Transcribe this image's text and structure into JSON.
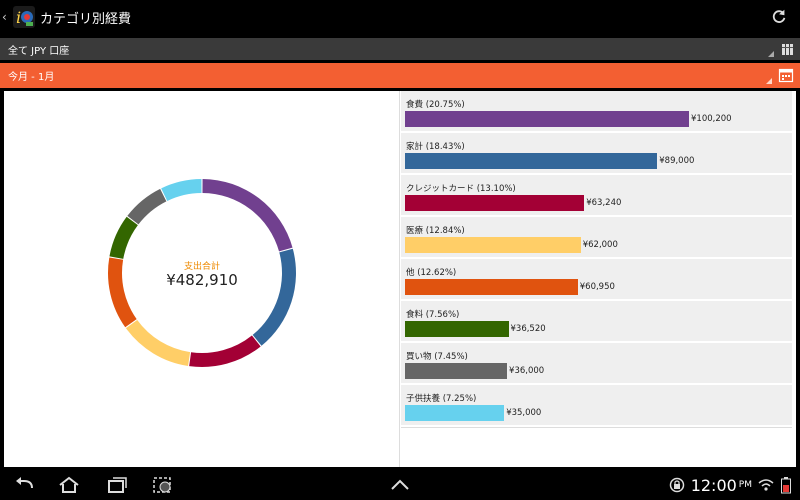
{
  "app": {
    "title": "カテゴリ別経費"
  },
  "account": {
    "label": "全て JPY 口座"
  },
  "period": {
    "label": "今月 - 1月"
  },
  "summary": {
    "title": "支出合計",
    "total": "¥482,910"
  },
  "categories": [
    {
      "label": "食費 (20.75%)",
      "amount": "¥100,200",
      "value": 100200,
      "color": "#71408f"
    },
    {
      "label": "家計 (18.43%)",
      "amount": "¥89,000",
      "value": 89000,
      "color": "#33679a"
    },
    {
      "label": "クレジットカード (13.10%)",
      "amount": "¥63,240",
      "value": 63240,
      "color": "#a30035"
    },
    {
      "label": "医療 (12.84%)",
      "amount": "¥62,000",
      "value": 62000,
      "color": "#ffce67"
    },
    {
      "label": "他 (12.62%)",
      "amount": "¥60,950",
      "value": 60950,
      "color": "#e0530f"
    },
    {
      "label": "食料 (7.56%)",
      "amount": "¥36,520",
      "value": 36520,
      "color": "#336600"
    },
    {
      "label": "買い物 (7.45%)",
      "amount": "¥36,000",
      "value": 36000,
      "color": "#666666"
    },
    {
      "label": "子供扶養 (7.25%)",
      "amount": "¥35,000",
      "value": 35000,
      "color": "#66d1ee"
    }
  ],
  "status": {
    "time": "12:00",
    "ampm": "PM"
  },
  "icons": [
    "back-arrow-icon",
    "app-logo-icon",
    "refresh-icon",
    "books-icon",
    "calendar-icon",
    "back-icon",
    "home-icon",
    "recent-apps-icon",
    "screenshot-icon",
    "up-chevron-icon",
    "rotation-lock-icon",
    "wifi-icon",
    "battery-icon"
  ],
  "colors": {
    "period_bar": "#f35f32",
    "account_bar": "#3a3a3a",
    "center_title": "#ee8a00"
  }
}
